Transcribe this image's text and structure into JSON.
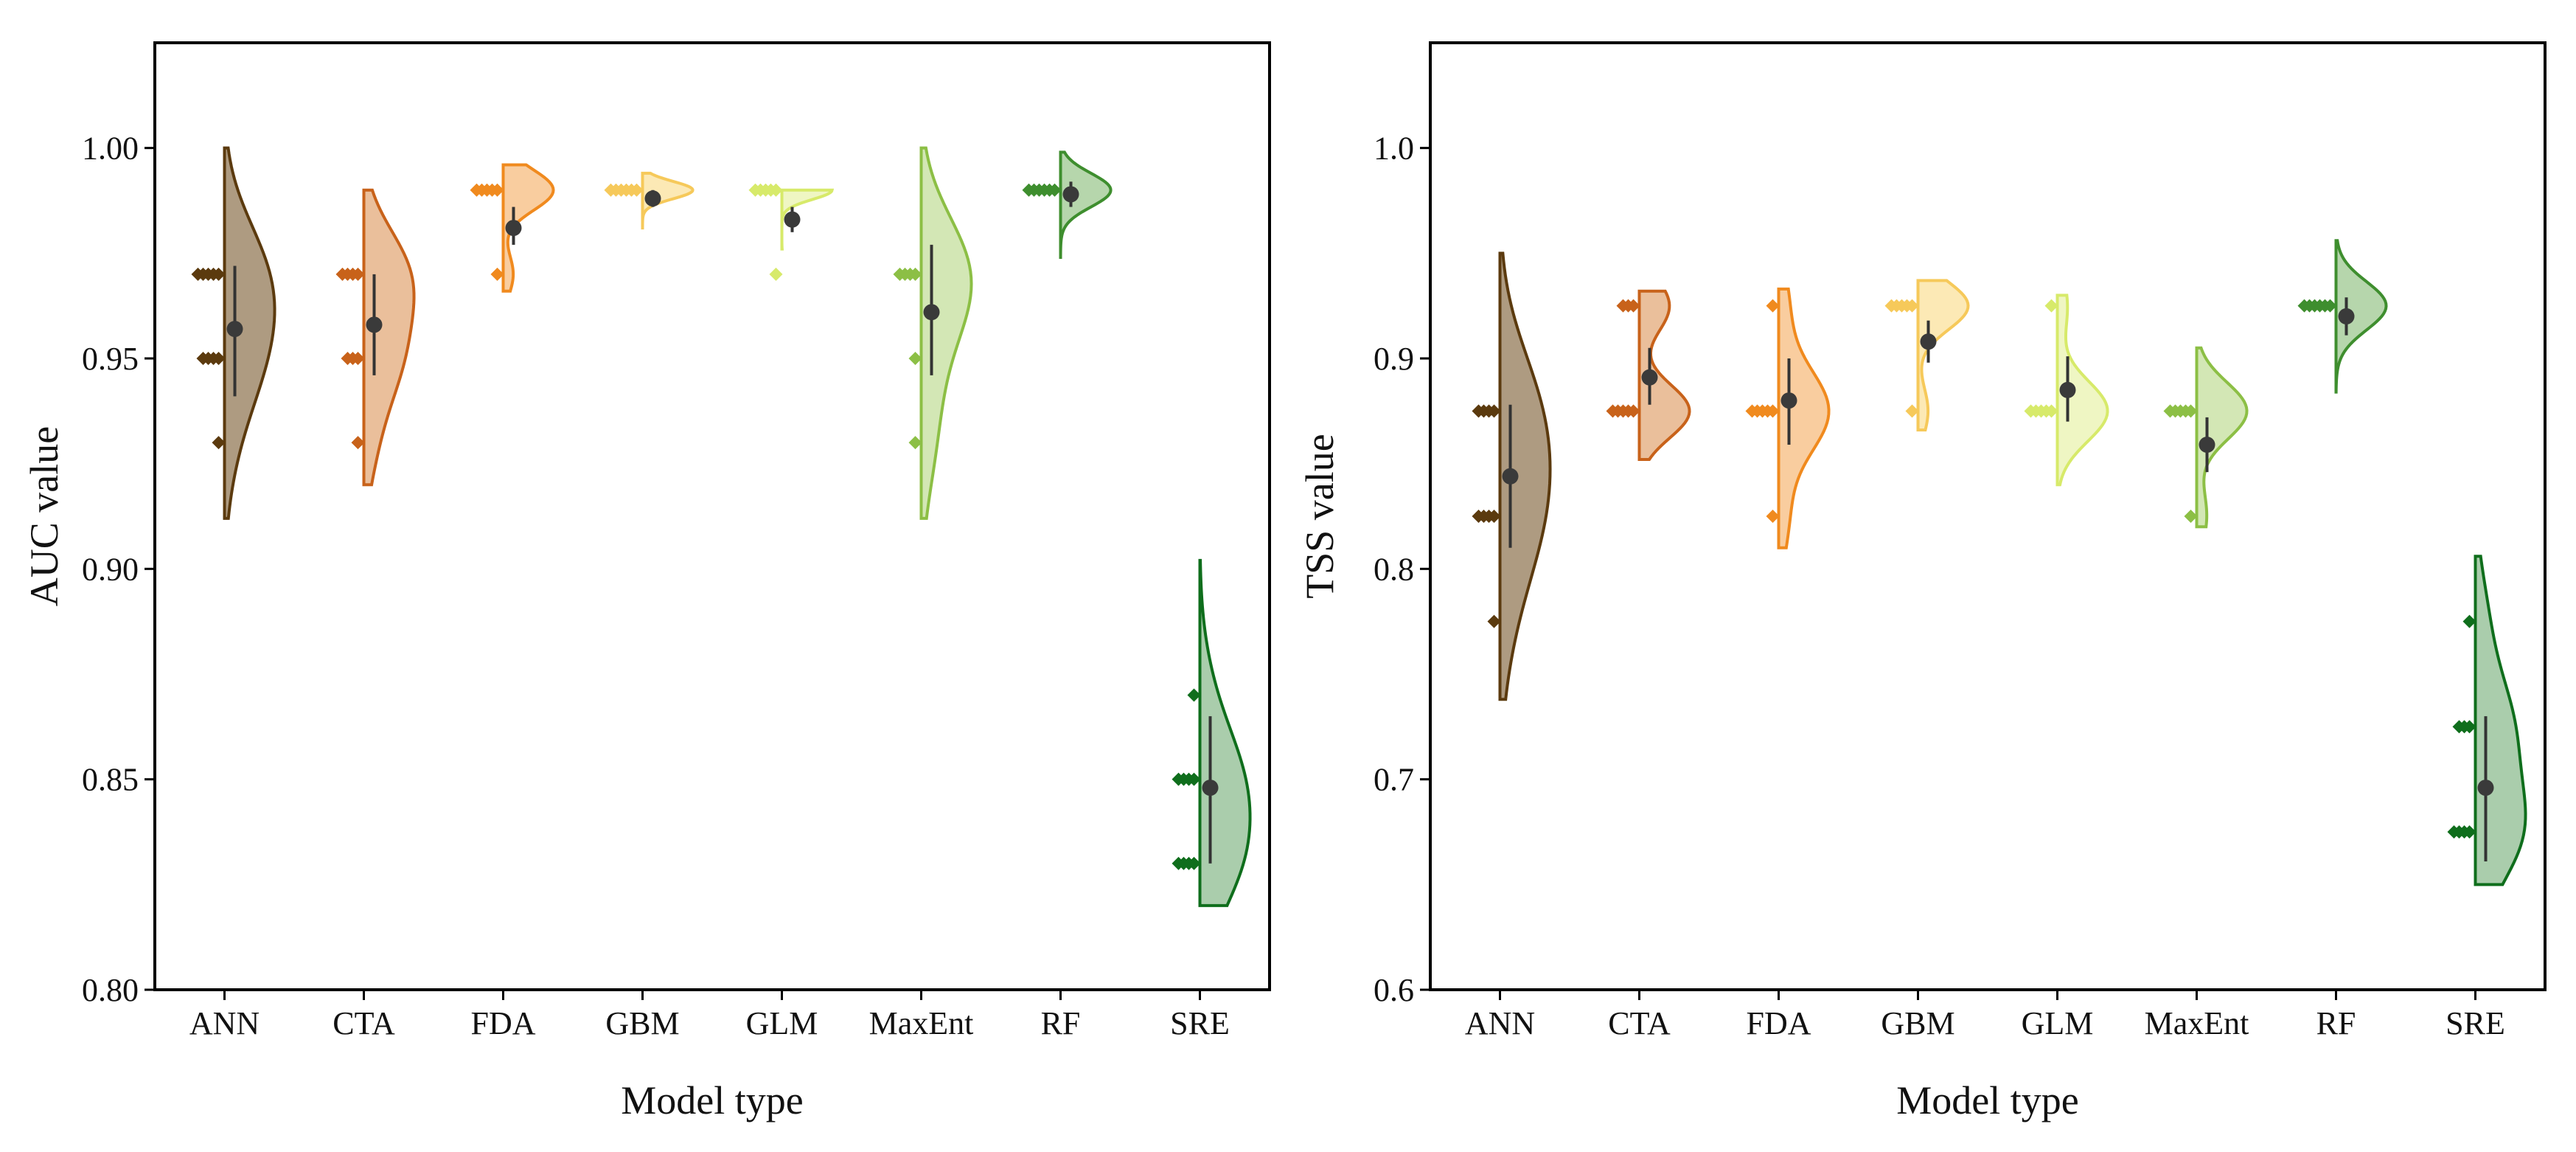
{
  "chart_data": [
    {
      "type": "violin",
      "xlabel": "Model type",
      "ylabel": "AUC value",
      "ylim": [
        0.8,
        1.025
      ],
      "yticks": [
        "0.80",
        "0.85",
        "0.90",
        "0.95",
        "1.00"
      ],
      "categories": [
        "ANN",
        "CTA",
        "FDA",
        "GBM",
        "GLM",
        "MaxEnt",
        "RF",
        "SRE"
      ],
      "series": [
        {
          "category": "ANN",
          "color": "#5b3a0e",
          "fill": "#a08a6b",
          "violin_range": [
            0.912,
            1.0
          ],
          "points": [
            0.97,
            0.97,
            0.97,
            0.97,
            0.97,
            0.95,
            0.95,
            0.95,
            0.95,
            0.93
          ],
          "mean": 0.957,
          "whisker": [
            0.941,
            0.972
          ]
        },
        {
          "category": "CTA",
          "color": "#c8621a",
          "fill": "#e6b48a",
          "violin_range": [
            0.92,
            0.99
          ],
          "points": [
            0.97,
            0.97,
            0.97,
            0.97,
            0.95,
            0.95,
            0.95,
            0.93
          ],
          "mean": 0.958,
          "whisker": [
            0.946,
            0.97
          ]
        },
        {
          "category": "FDA",
          "color": "#f08a1e",
          "fill": "#f8c48e",
          "violin_range": [
            0.966,
            0.996
          ],
          "points": [
            0.99,
            0.99,
            0.99,
            0.99,
            0.99,
            0.97
          ],
          "mean": 0.981,
          "whisker": [
            0.977,
            0.986
          ]
        },
        {
          "category": "GBM",
          "color": "#f6c95a",
          "fill": "#fbe5a8",
          "violin_range": [
            0.981,
            0.994
          ],
          "points": [
            0.99,
            0.99,
            0.99,
            0.99,
            0.99,
            0.99
          ],
          "mean": 0.988,
          "whisker": [
            0.986,
            0.99
          ]
        },
        {
          "category": "GLM",
          "color": "#d7ea6a",
          "fill": "#ecf4b8",
          "violin_range": [
            0.976,
            0.99
          ],
          "points": [
            0.99,
            0.99,
            0.99,
            0.99,
            0.99,
            0.97
          ],
          "mean": 0.983,
          "whisker": [
            0.98,
            0.986
          ]
        },
        {
          "category": "MaxEnt",
          "color": "#8cbf45",
          "fill": "#cbe3a8",
          "violin_range": [
            0.912,
            1.0
          ],
          "points": [
            0.97,
            0.97,
            0.97,
            0.97,
            0.95,
            0.93
          ],
          "mean": 0.961,
          "whisker": [
            0.946,
            0.977
          ]
        },
        {
          "category": "RF",
          "color": "#3e8e2e",
          "fill": "#a9cf9d",
          "violin_range": [
            0.974,
            0.999
          ],
          "points": [
            0.99,
            0.99,
            0.99,
            0.99,
            0.99,
            0.99
          ],
          "mean": 0.989,
          "whisker": [
            0.986,
            0.992
          ]
        },
        {
          "category": "SRE",
          "color": "#0f6e1c",
          "fill": "#9bc49e",
          "violin_range": [
            0.82,
            0.902
          ],
          "points": [
            0.87,
            0.85,
            0.85,
            0.85,
            0.85,
            0.83,
            0.83,
            0.83,
            0.83
          ],
          "mean": 0.848,
          "whisker": [
            0.83,
            0.865
          ]
        }
      ]
    },
    {
      "type": "violin",
      "xlabel": "Model type",
      "ylabel": "TSS value",
      "ylim": [
        0.6,
        1.05
      ],
      "yticks": [
        "0.6",
        "0.7",
        "0.8",
        "0.9",
        "1.0"
      ],
      "categories": [
        "ANN",
        "CTA",
        "FDA",
        "GBM",
        "GLM",
        "MaxEnt",
        "RF",
        "SRE"
      ],
      "series": [
        {
          "category": "ANN",
          "color": "#5b3a0e",
          "fill": "#a08a6b",
          "violin_range": [
            0.738,
            0.95
          ],
          "points": [
            0.875,
            0.875,
            0.875,
            0.875,
            0.825,
            0.825,
            0.825,
            0.825,
            0.775
          ],
          "mean": 0.844,
          "whisker": [
            0.81,
            0.878
          ]
        },
        {
          "category": "CTA",
          "color": "#c8621a",
          "fill": "#e6b48a",
          "violin_range": [
            0.852,
            0.932
          ],
          "points": [
            0.925,
            0.925,
            0.925,
            0.875,
            0.875,
            0.875,
            0.875,
            0.875
          ],
          "mean": 0.891,
          "whisker": [
            0.878,
            0.905
          ]
        },
        {
          "category": "FDA",
          "color": "#f08a1e",
          "fill": "#f8c48e",
          "violin_range": [
            0.81,
            0.933
          ],
          "points": [
            0.925,
            0.875,
            0.875,
            0.875,
            0.875,
            0.875,
            0.825
          ],
          "mean": 0.88,
          "whisker": [
            0.859,
            0.9
          ]
        },
        {
          "category": "GBM",
          "color": "#f6c95a",
          "fill": "#fbe5a8",
          "violin_range": [
            0.866,
            0.937
          ],
          "points": [
            0.925,
            0.925,
            0.925,
            0.925,
            0.925,
            0.875
          ],
          "mean": 0.908,
          "whisker": [
            0.898,
            0.918
          ]
        },
        {
          "category": "GLM",
          "color": "#d7ea6a",
          "fill": "#ecf4b8",
          "violin_range": [
            0.84,
            0.93
          ],
          "points": [
            0.925,
            0.875,
            0.875,
            0.875,
            0.875,
            0.875
          ],
          "mean": 0.885,
          "whisker": [
            0.87,
            0.901
          ]
        },
        {
          "category": "MaxEnt",
          "color": "#8cbf45",
          "fill": "#cbe3a8",
          "violin_range": [
            0.82,
            0.905
          ],
          "points": [
            0.875,
            0.875,
            0.875,
            0.875,
            0.875,
            0.825
          ],
          "mean": 0.859,
          "whisker": [
            0.846,
            0.872
          ]
        },
        {
          "category": "RF",
          "color": "#3e8e2e",
          "fill": "#a9cf9d",
          "violin_range": [
            0.884,
            0.956
          ],
          "points": [
            0.925,
            0.925,
            0.925,
            0.925,
            0.925,
            0.925
          ],
          "mean": 0.92,
          "whisker": [
            0.911,
            0.929
          ]
        },
        {
          "category": "SRE",
          "color": "#0f6e1c",
          "fill": "#9bc49e",
          "violin_range": [
            0.65,
            0.806
          ],
          "points": [
            0.775,
            0.725,
            0.725,
            0.725,
            0.675,
            0.675,
            0.675,
            0.675
          ],
          "mean": 0.696,
          "whisker": [
            0.661,
            0.73
          ]
        }
      ]
    }
  ]
}
